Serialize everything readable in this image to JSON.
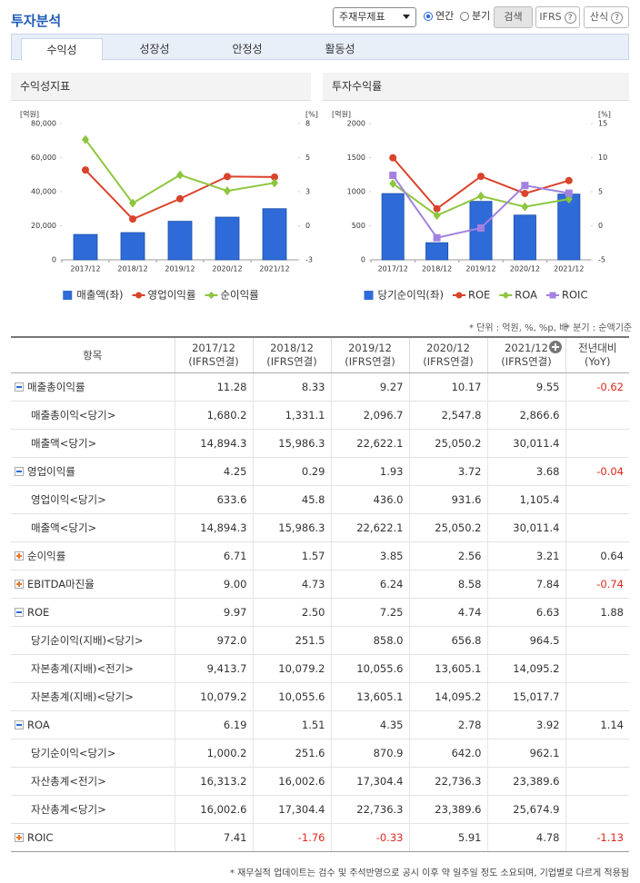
{
  "header": {
    "title": "투자분석",
    "select": "주재무제표",
    "radios": [
      "연간",
      "분기"
    ],
    "buttons": [
      "검색",
      "IFRS",
      "산식"
    ]
  },
  "tabs": [
    "수익성",
    "성장성",
    "안정성",
    "활동성"
  ],
  "chart_data": [
    {
      "type": "bar",
      "title": "수익성지표",
      "y_label": "[억원]",
      "y2_label": "[%]",
      "categories": [
        "2017/12",
        "2018/12",
        "2019/12",
        "2020/12",
        "2021/12"
      ],
      "series": [
        {
          "name": "매출액(좌)",
          "color": "#2e6bd8",
          "values": [
            14894.3,
            15986.3,
            22622.1,
            25050.2,
            30011.4
          ]
        },
        {
          "name": "영업이익률",
          "color": "#d9432b",
          "axis": "y2",
          "marker": "circle",
          "values": [
            4.25,
            0.29,
            1.93,
            3.72,
            3.68
          ]
        },
        {
          "name": "순이익률",
          "color": "#8dc63f",
          "axis": "y2",
          "marker": "diamond",
          "values": [
            6.71,
            1.57,
            3.85,
            2.56,
            3.21
          ]
        }
      ],
      "ylim": [
        0,
        80000
      ],
      "yticks": [
        0,
        {
          "value": 20000,
          "label": "20,000"
        },
        {
          "value": 40000,
          "label": "40,000"
        },
        {
          "value": 60000,
          "label": "60,000"
        },
        {
          "value": 80000,
          "label": "80,000"
        }
      ],
      "y2lim": [
        -3,
        8
      ],
      "y2ticks": [
        -3,
        {
          "value": -0.25,
          "label": "0"
        },
        {
          "value": 2.5,
          "label": "3"
        },
        {
          "value": 5.25,
          "label": "5"
        },
        8
      ],
      "grid": false
    },
    {
      "type": "bar",
      "title": "투자수익률",
      "y_label": "[억원]",
      "y2_label": "[%]",
      "categories": [
        "2017/12",
        "2018/12",
        "2019/12",
        "2020/12",
        "2021/12"
      ],
      "series": [
        {
          "name": "당기순이익(좌)",
          "color": "#2e6bd8",
          "values": [
            972.0,
            251.5,
            858.0,
            656.8,
            964.5
          ]
        },
        {
          "name": "ROE",
          "color": "#d9432b",
          "axis": "y2",
          "marker": "circle",
          "values": [
            9.97,
            2.5,
            7.25,
            4.74,
            6.63
          ]
        },
        {
          "name": "ROA",
          "color": "#8dc63f",
          "axis": "y2",
          "marker": "diamond",
          "values": [
            6.19,
            1.51,
            4.35,
            2.78,
            3.92
          ]
        },
        {
          "name": "ROIC",
          "color": "#a381e0",
          "axis": "y2",
          "marker": "square",
          "values": [
            7.41,
            -1.76,
            -0.33,
            5.91,
            4.78
          ]
        }
      ],
      "ylim": [
        0,
        2000
      ],
      "yticks": [
        0,
        500,
        1000,
        1500,
        2000
      ],
      "y2lim": [
        -5,
        15
      ],
      "y2ticks": [
        -5,
        0,
        5,
        10,
        15
      ],
      "grid": false
    }
  ],
  "notes": [
    "* 단위 : 억원, %, %p, 배",
    "* 분기 : 순액기준"
  ],
  "table": {
    "columns": [
      {
        "head": "항목"
      },
      {
        "head": "2017/12",
        "sub": "(IFRS연결)"
      },
      {
        "head": "2018/12",
        "sub": "(IFRS연결)"
      },
      {
        "head": "2019/12",
        "sub": "(IFRS연결)"
      },
      {
        "head": "2020/12",
        "sub": "(IFRS연결)"
      },
      {
        "head": "2021/12",
        "sub": "(IFRS연결)"
      },
      {
        "head": "전년대비",
        "sub": "(YoY)"
      }
    ],
    "rows": [
      {
        "label": "매출총이익률",
        "toggle": "minus",
        "values": [
          "11.28",
          "8.33",
          "9.27",
          "10.17",
          "9.55"
        ],
        "yoy": "-0.62"
      },
      {
        "label": "매출총이익<당기>",
        "values": [
          "1,680.2",
          "1,331.1",
          "2,096.7",
          "2,547.8",
          "2,866.6"
        ]
      },
      {
        "label": "매출액<당기>",
        "values": [
          "14,894.3",
          "15,986.3",
          "22,622.1",
          "25,050.2",
          "30,011.4"
        ]
      },
      {
        "label": "영업이익률",
        "toggle": "minus",
        "values": [
          "4.25",
          "0.29",
          "1.93",
          "3.72",
          "3.68"
        ],
        "yoy": "-0.04"
      },
      {
        "label": "영업이익<당기>",
        "values": [
          "633.6",
          "45.8",
          "436.0",
          "931.6",
          "1,105.4"
        ]
      },
      {
        "label": "매출액<당기>",
        "values": [
          "14,894.3",
          "15,986.3",
          "22,622.1",
          "25,050.2",
          "30,011.4"
        ]
      },
      {
        "label": "순이익률",
        "toggle": "plus",
        "values": [
          "6.71",
          "1.57",
          "3.85",
          "2.56",
          "3.21"
        ],
        "yoy": "0.64"
      },
      {
        "label": "EBITDA마진율",
        "toggle": "plus",
        "values": [
          "9.00",
          "4.73",
          "6.24",
          "8.58",
          "7.84"
        ],
        "yoy": "-0.74"
      },
      {
        "label": "ROE",
        "toggle": "minus",
        "values": [
          "9.97",
          "2.50",
          "7.25",
          "4.74",
          "6.63"
        ],
        "yoy": "1.88"
      },
      {
        "label": "당기순이익(지배)<당기>",
        "values": [
          "972.0",
          "251.5",
          "858.0",
          "656.8",
          "964.5"
        ]
      },
      {
        "label": "자본총계(지배)<전기>",
        "values": [
          "9,413.7",
          "10,079.2",
          "10,055.6",
          "13,605.1",
          "14,095.2"
        ]
      },
      {
        "label": "자본총계(지배)<당기>",
        "values": [
          "10,079.2",
          "10,055.6",
          "13,605.1",
          "14,095.2",
          "15,017.7"
        ]
      },
      {
        "label": "ROA",
        "toggle": "minus",
        "values": [
          "6.19",
          "1.51",
          "4.35",
          "2.78",
          "3.92"
        ],
        "yoy": "1.14"
      },
      {
        "label": "당기순이익<당기>",
        "values": [
          "1,000.2",
          "251.6",
          "870.9",
          "642.0",
          "962.1"
        ]
      },
      {
        "label": "자산총계<전기>",
        "values": [
          "16,313.2",
          "16,002.6",
          "17,304.4",
          "22,736.3",
          "23,389.6"
        ]
      },
      {
        "label": "자산총계<당기>",
        "values": [
          "16,002.6",
          "17,304.4",
          "22,736.3",
          "23,389.6",
          "25,674.9"
        ]
      },
      {
        "label": "ROIC",
        "toggle": "plus",
        "values": [
          "7.41",
          "-1.76",
          "-0.33",
          "5.91",
          "4.78"
        ],
        "yoy": "-1.13"
      }
    ]
  },
  "footnote": "* 재무실적 업데이트는 검수 및 주석반영으로 공시 이후 약 일주일 정도 소요되며, 기업별로 다르게 적용됨"
}
